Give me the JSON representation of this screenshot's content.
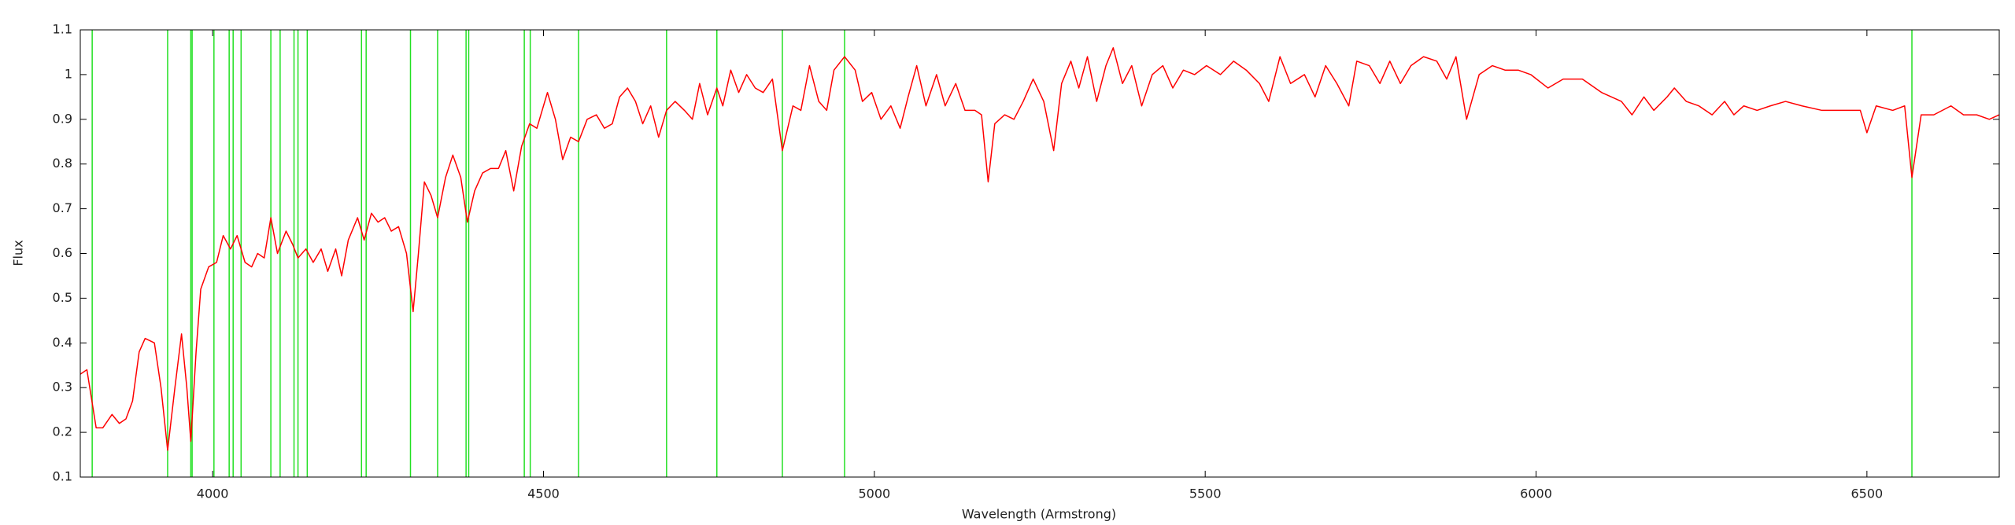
{
  "chart_data": {
    "type": "line",
    "xlabel": "Wavelength (Armstrong)",
    "ylabel": "Flux",
    "xlim": [
      3800,
      6700
    ],
    "ylim": [
      0.1,
      1.1
    ],
    "xticks": [
      4000,
      4500,
      5000,
      5500,
      6000,
      6500
    ],
    "yticks": [
      0.1,
      0.2,
      0.3,
      0.4,
      0.5,
      0.6,
      0.7,
      0.8,
      0.9,
      1,
      1.1
    ],
    "line_color": "#ff0000",
    "vline_color": "#22e022",
    "vlines": [
      3818,
      3932,
      3967,
      3969,
      4002,
      4025,
      4031,
      4043,
      4088,
      4102,
      4123,
      4129,
      4143,
      4225,
      4232,
      4299,
      4340,
      4383,
      4387,
      4471,
      4480,
      4553,
      4686,
      4762,
      4861,
      4955,
      6568
    ],
    "series": [
      {
        "name": "Flux",
        "x": [
          3800,
          3810,
          3824,
          3834,
          3848,
          3859,
          3869,
          3879,
          3889,
          3898,
          3912,
          3922,
          3932,
          3943,
          3953,
          3961,
          3967,
          3975,
          3982,
          3994,
          4006,
          4016,
          4027,
          4037,
          4049,
          4059,
          4068,
          4078,
          4088,
          4098,
          4111,
          4121,
          4129,
          4141,
          4152,
          4164,
          4174,
          4186,
          4195,
          4205,
          4219,
          4229,
          4240,
          4250,
          4260,
          4270,
          4281,
          4293,
          4303,
          4311,
          4320,
          4330,
          4340,
          4352,
          4363,
          4375,
          4385,
          4396,
          4408,
          4420,
          4432,
          4443,
          4455,
          4467,
          4479,
          4490,
          4506,
          4518,
          4529,
          4541,
          4553,
          4566,
          4580,
          4592,
          4604,
          4615,
          4627,
          4639,
          4650,
          4662,
          4674,
          4686,
          4699,
          4713,
          4725,
          4736,
          4748,
          4762,
          4771,
          4783,
          4795,
          4807,
          4820,
          4832,
          4846,
          4861,
          4877,
          4889,
          4902,
          4916,
          4928,
          4939,
          4955,
          4971,
          4982,
          4996,
          5010,
          5025,
          5039,
          5051,
          5064,
          5078,
          5094,
          5107,
          5123,
          5137,
          5152,
          5162,
          5172,
          5182,
          5197,
          5211,
          5225,
          5240,
          5256,
          5271,
          5283,
          5297,
          5309,
          5322,
          5336,
          5350,
          5361,
          5375,
          5389,
          5404,
          5420,
          5436,
          5451,
          5467,
          5484,
          5502,
          5523,
          5543,
          5562,
          5582,
          5596,
          5613,
          5629,
          5650,
          5666,
          5682,
          5699,
          5717,
          5729,
          5748,
          5764,
          5779,
          5795,
          5811,
          5830,
          5850,
          5865,
          5879,
          5895,
          5914,
          5934,
          5953,
          5973,
          5992,
          6018,
          6041,
          6070,
          6099,
          6129,
          6145,
          6163,
          6178,
          6198,
          6209,
          6227,
          6246,
          6266,
          6285,
          6299,
          6314,
          6334,
          6354,
          6377,
          6402,
          6432,
          6461,
          6490,
          6500,
          6514,
          6539,
          6557,
          6568,
          6582,
          6601,
          6627,
          6646,
          6666,
          6685,
          6700
        ],
        "values": [
          0.33,
          0.34,
          0.21,
          0.21,
          0.24,
          0.22,
          0.23,
          0.27,
          0.38,
          0.41,
          0.4,
          0.3,
          0.16,
          0.3,
          0.42,
          0.3,
          0.18,
          0.38,
          0.52,
          0.57,
          0.58,
          0.64,
          0.61,
          0.64,
          0.58,
          0.57,
          0.6,
          0.59,
          0.68,
          0.6,
          0.65,
          0.62,
          0.59,
          0.61,
          0.58,
          0.61,
          0.56,
          0.61,
          0.55,
          0.63,
          0.68,
          0.63,
          0.69,
          0.67,
          0.68,
          0.65,
          0.66,
          0.6,
          0.47,
          0.6,
          0.76,
          0.73,
          0.68,
          0.77,
          0.82,
          0.77,
          0.67,
          0.74,
          0.78,
          0.79,
          0.79,
          0.83,
          0.74,
          0.84,
          0.89,
          0.88,
          0.96,
          0.9,
          0.81,
          0.86,
          0.85,
          0.9,
          0.91,
          0.88,
          0.89,
          0.95,
          0.97,
          0.94,
          0.89,
          0.93,
          0.86,
          0.92,
          0.94,
          0.92,
          0.9,
          0.98,
          0.91,
          0.97,
          0.93,
          1.01,
          0.96,
          1.0,
          0.97,
          0.96,
          0.99,
          0.83,
          0.93,
          0.92,
          1.02,
          0.94,
          0.92,
          1.01,
          1.04,
          1.01,
          0.94,
          0.96,
          0.9,
          0.93,
          0.88,
          0.95,
          1.02,
          0.93,
          1.0,
          0.93,
          0.98,
          0.92,
          0.92,
          0.91,
          0.76,
          0.89,
          0.91,
          0.9,
          0.94,
          0.99,
          0.94,
          0.83,
          0.98,
          1.03,
          0.97,
          1.04,
          0.94,
          1.02,
          1.06,
          0.98,
          1.02,
          0.93,
          1.0,
          1.02,
          0.97,
          1.01,
          1.0,
          1.02,
          1.0,
          1.03,
          1.01,
          0.98,
          0.94,
          1.04,
          0.98,
          1.0,
          0.95,
          1.02,
          0.98,
          0.93,
          1.03,
          1.02,
          0.98,
          1.03,
          0.98,
          1.02,
          1.04,
          1.03,
          0.99,
          1.04,
          0.9,
          1.0,
          1.02,
          1.01,
          1.01,
          1.0,
          0.97,
          0.99,
          0.99,
          0.96,
          0.94,
          0.91,
          0.95,
          0.92,
          0.95,
          0.97,
          0.94,
          0.93,
          0.91,
          0.94,
          0.91,
          0.93,
          0.92,
          0.93,
          0.94,
          0.93,
          0.92,
          0.92,
          0.92,
          0.87,
          0.93,
          0.92,
          0.93,
          0.77,
          0.91,
          0.91,
          0.93,
          0.91,
          0.91,
          0.9,
          0.91
        ]
      }
    ]
  }
}
